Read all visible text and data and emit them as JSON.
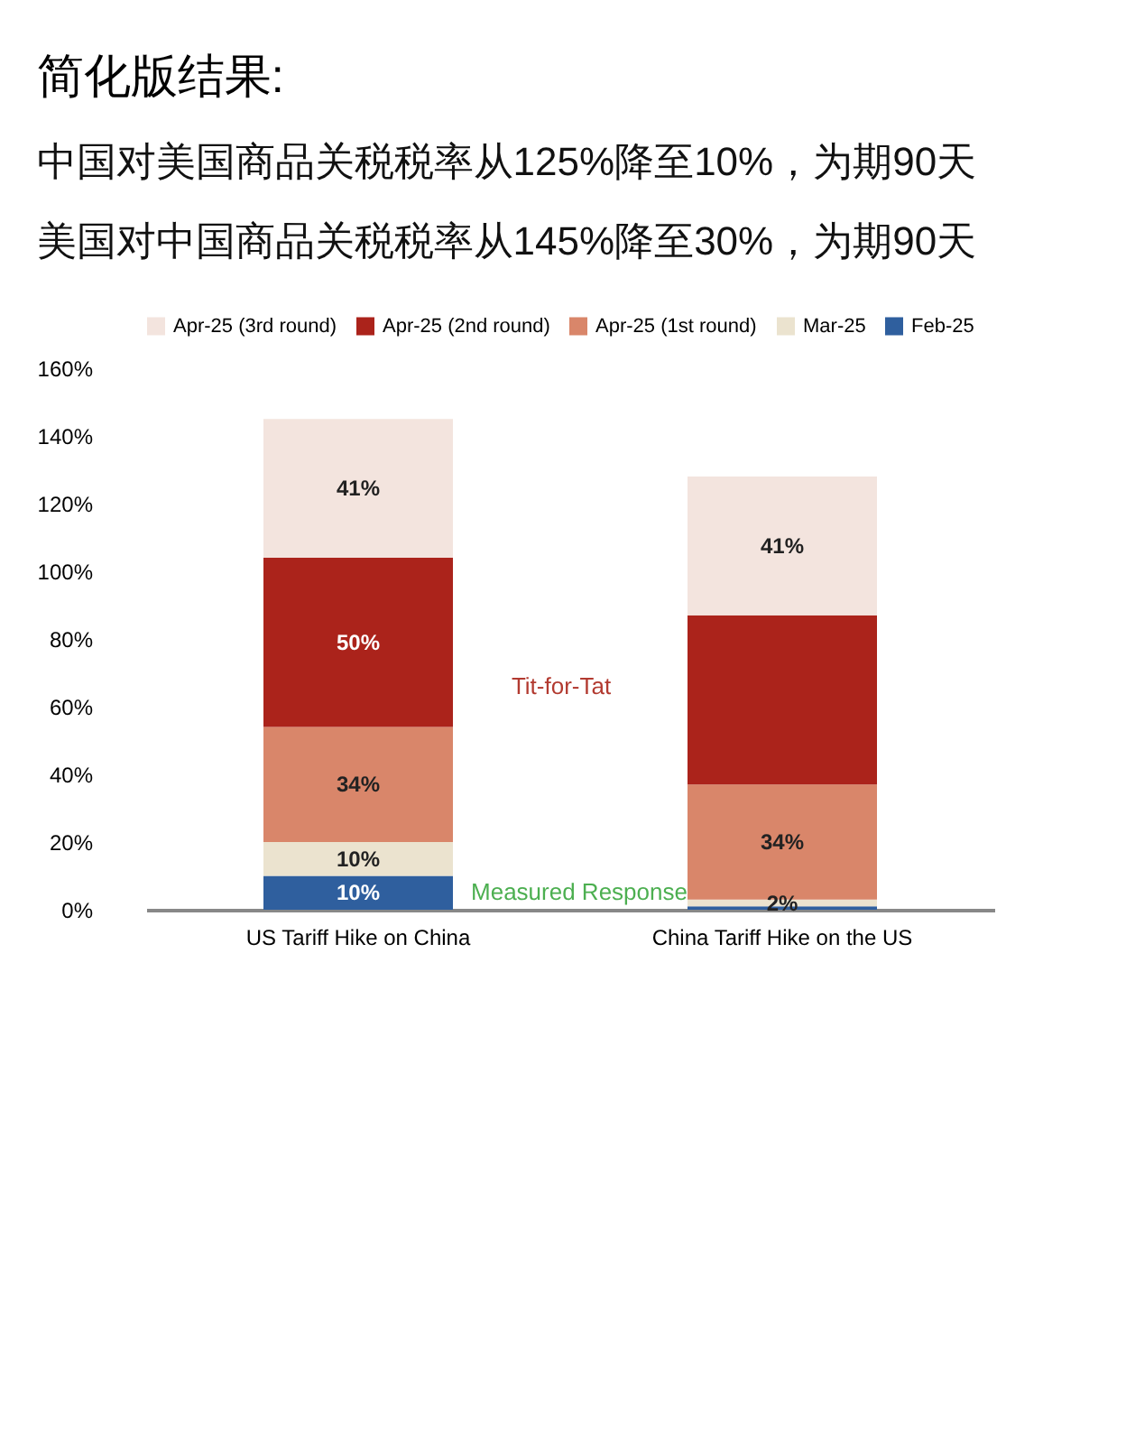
{
  "chart_data": {
    "type": "bar",
    "stacked": true,
    "title": "简化版结果:",
    "subtitle": [
      "中国对美国商品关税税率从125%降至10%，为期90天",
      "美国对中国商品关税税率从145%降至30%，为期90天"
    ],
    "categories": [
      "US Tariff Hike on China",
      "China Tariff Hike on the US"
    ],
    "series": [
      {
        "name": "Feb-25",
        "color": "#2f5f9e",
        "values": [
          10,
          1
        ],
        "value_labels": [
          "10%",
          null
        ]
      },
      {
        "name": "Mar-25",
        "color": "#ebe3cf",
        "values": [
          10,
          2
        ],
        "value_labels": [
          "10%",
          "2%"
        ]
      },
      {
        "name": "Apr-25 (1st round)",
        "color": "#d9866a",
        "values": [
          34,
          34
        ],
        "value_labels": [
          "34%",
          "34%"
        ]
      },
      {
        "name": "Apr-25 (2nd round)",
        "color": "#ab231b",
        "values": [
          50,
          50
        ],
        "value_labels": [
          "50%",
          null
        ]
      },
      {
        "name": "Apr-25 (3rd round)",
        "color": "#f3e4de",
        "values": [
          41,
          41
        ],
        "value_labels": [
          "41%",
          "41%"
        ]
      }
    ],
    "ylim": [
      0,
      160
    ],
    "yticks": [
      {
        "value": 0,
        "label": "0%"
      },
      {
        "value": 20,
        "label": "20%"
      },
      {
        "value": 40,
        "label": "40%"
      },
      {
        "value": 60,
        "label": "60%"
      },
      {
        "value": 80,
        "label": "80%"
      },
      {
        "value": 100,
        "label": "100%"
      },
      {
        "value": 120,
        "label": "120%"
      },
      {
        "value": 140,
        "label": "140%"
      },
      {
        "value": 160,
        "label": "160%"
      }
    ],
    "grid": false,
    "legend": "top",
    "annotations": [
      "Tit-for-Tat",
      "Measured Response"
    ]
  }
}
